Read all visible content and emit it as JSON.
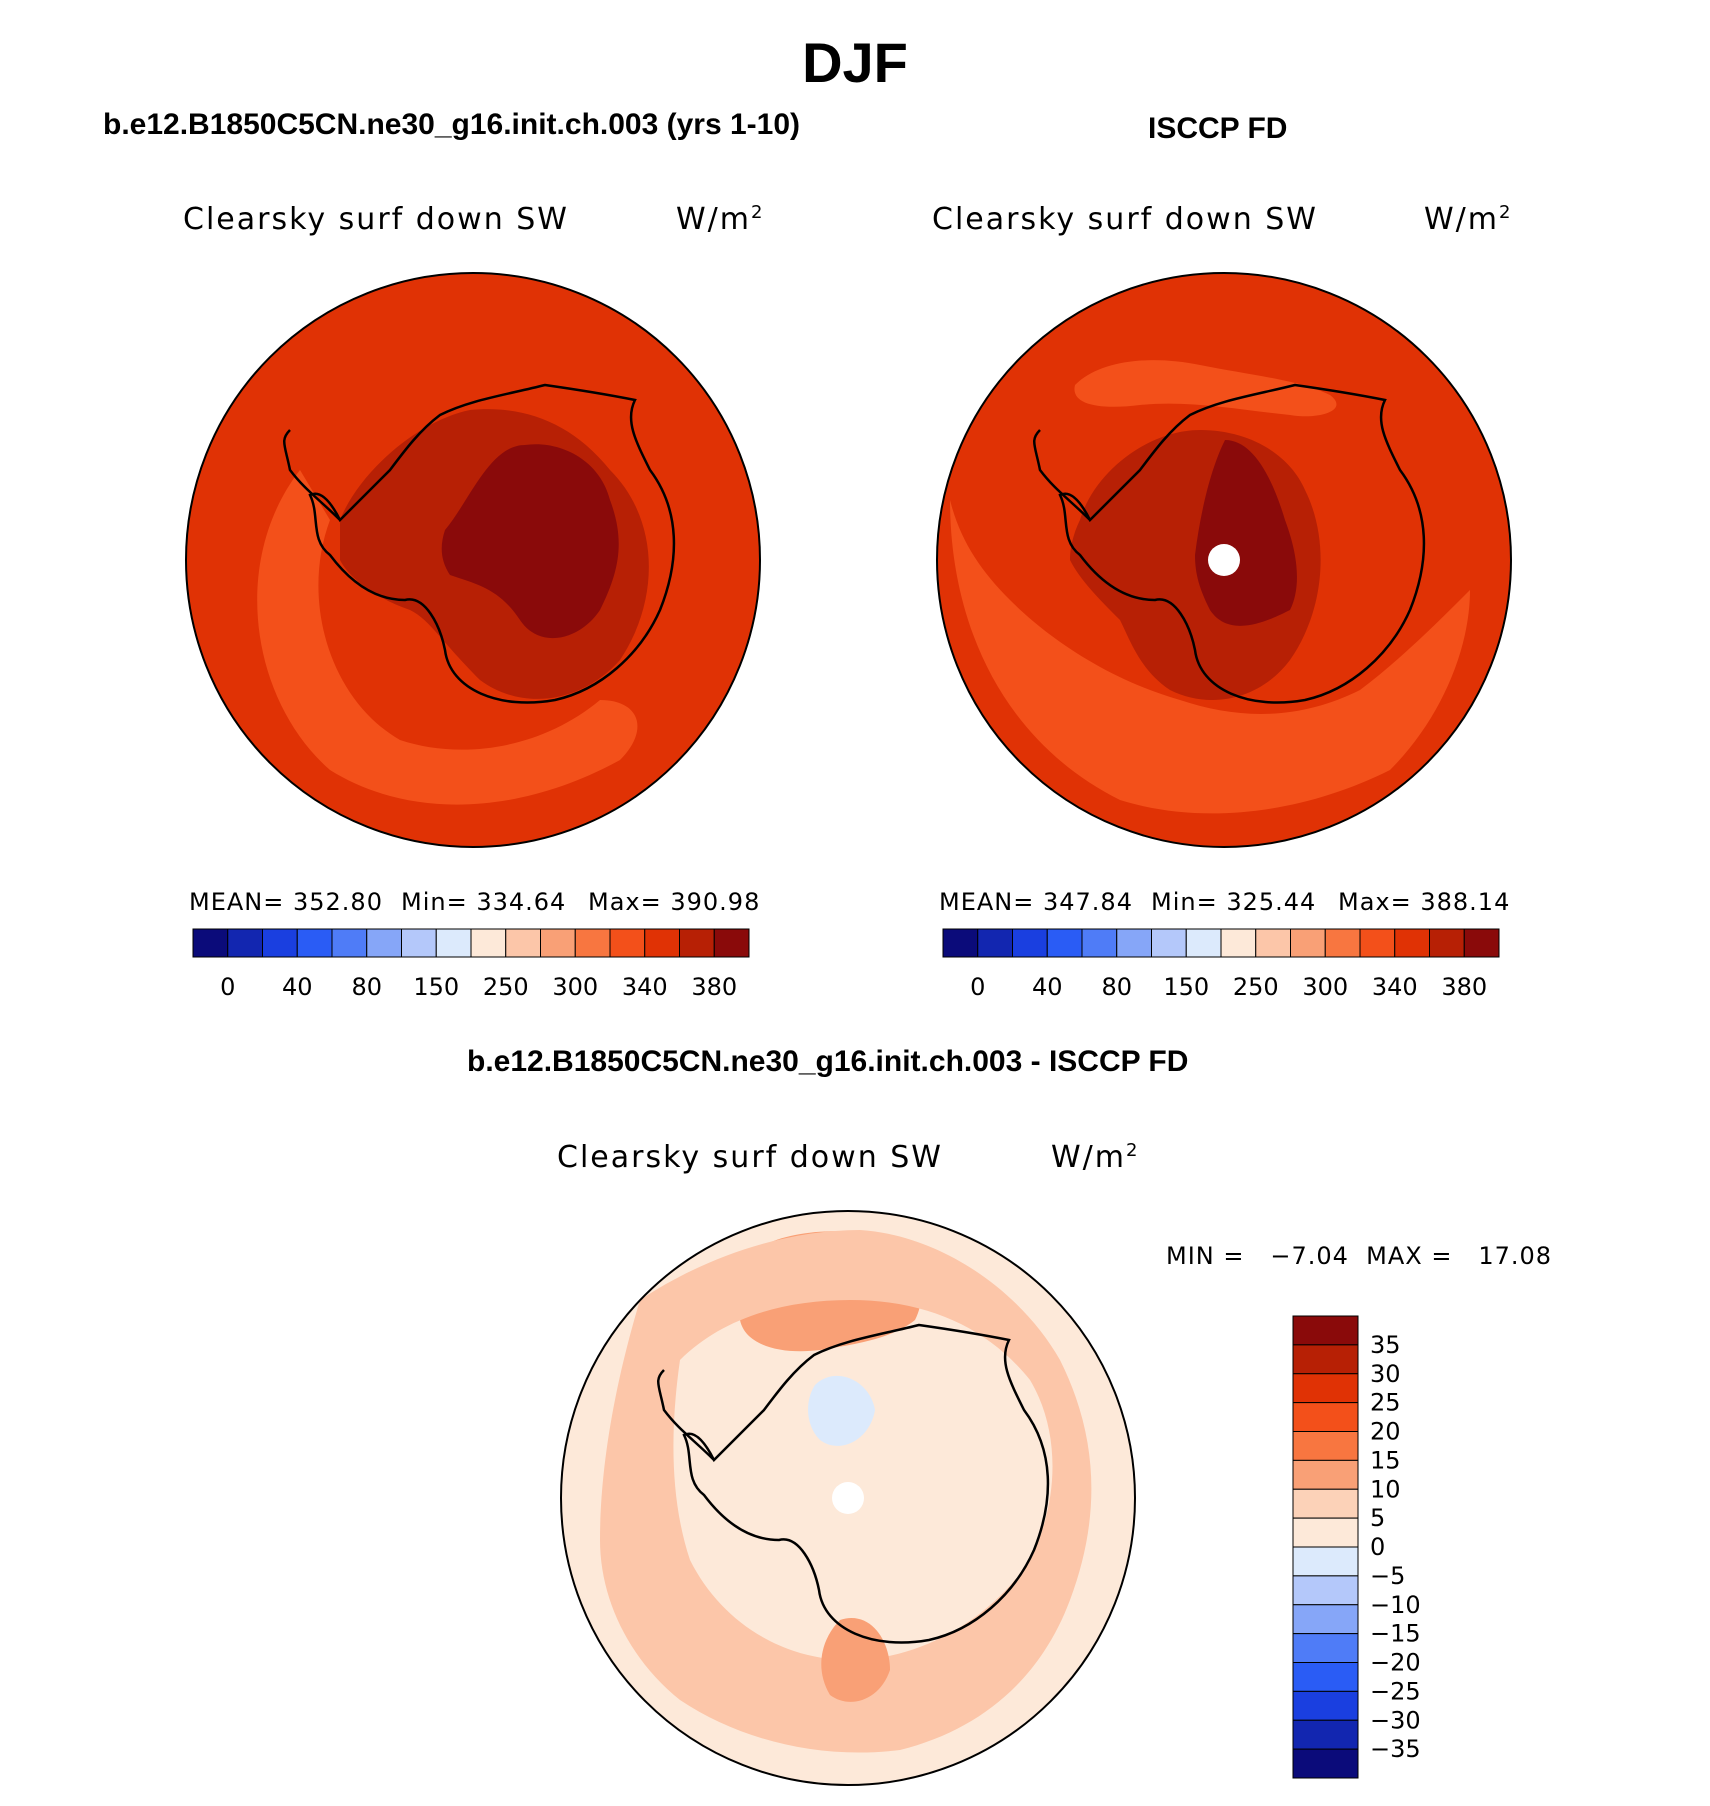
{
  "header": {
    "season": "DJF",
    "left_title": "b.e12.B1850C5CN.ne30_g16.init.ch.003 (yrs 1-10)",
    "right_title": "ISCCP FD",
    "diff_title": "b.e12.B1850C5CN.ne30_g16.init.ch.003 - ISCCP FD"
  },
  "panels": {
    "model": {
      "variable": "Clearsky surf down SW",
      "units": "W/m",
      "units_sup": "2",
      "mean": "MEAN= 352.80",
      "min": "Min= 334.64",
      "max": "Max= 390.98"
    },
    "obs": {
      "variable": "Clearsky surf down SW",
      "units": "W/m",
      "units_sup": "2",
      "mean": "MEAN= 347.84",
      "min": "Min= 325.44",
      "max": "Max= 388.14"
    },
    "diff": {
      "variable": "Clearsky surf down SW",
      "units": "W/m",
      "units_sup": "2",
      "minmax": "MIN =   −7.04  MAX =   17.08"
    }
  },
  "colorbars": {
    "abs_colors": [
      "#0b0b7a",
      "#1226b0",
      "#1a3fe0",
      "#2a5cf5",
      "#4f7cf7",
      "#86a6f8",
      "#b4c8fa",
      "#dceafc",
      "#fde9d9",
      "#fcc6a9",
      "#f9a076",
      "#f87640",
      "#f3501a",
      "#e03205",
      "#b72005",
      "#8a0a0a"
    ],
    "abs_labels": [
      "0",
      "40",
      "80",
      "150",
      "250",
      "300",
      "340",
      "380"
    ],
    "diff_colors": [
      "#8a0a0a",
      "#b72005",
      "#e03205",
      "#f3501a",
      "#f87640",
      "#f9a076",
      "#fcd2b8",
      "#fde9d9",
      "#dceafc",
      "#b4c8fa",
      "#86a6f8",
      "#4f7cf7",
      "#2a5cf5",
      "#1a3fe0",
      "#1226b0",
      "#0b0b7a"
    ],
    "diff_labels": [
      "35",
      "30",
      "25",
      "20",
      "15",
      "10",
      "5",
      "0",
      "−5",
      "−10",
      "−15",
      "−20",
      "−25",
      "−30",
      "−35"
    ]
  },
  "map_colors": {
    "outer": "#e03205",
    "mid": "#f3501a",
    "inner": "#b72005",
    "core": "#8a0a0a",
    "diff_base": "#fde9d9",
    "diff_pos1": "#fcc6a9",
    "diff_pos2": "#f9a076",
    "diff_pos3": "#f87640",
    "diff_neg": "#dceafc"
  }
}
